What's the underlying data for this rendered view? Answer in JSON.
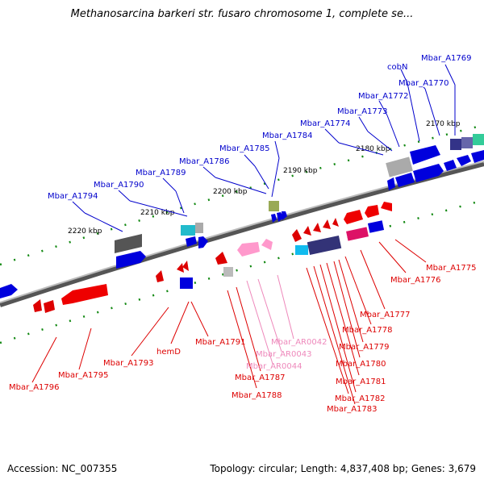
{
  "map": {
    "title": "Methanosarcina barkeri str. fusaro chromosome 1, complete se...",
    "accession": "Accession: NC_007355",
    "summary": "Topology: circular; Length: 4,837,408 bp; Genes: 3,679"
  },
  "scale_labels": [
    "2170 kbp",
    "2180 kbp",
    "2190 kbp",
    "2200 kbp",
    "2210 kbp",
    "2220 kbp"
  ],
  "genes_top": [
    "Mbar_A1769",
    "cobN",
    "Mbar_A1770",
    "Mbar_A1772",
    "Mbar_A1773",
    "Mbar_A1774",
    "Mbar_A1784",
    "Mbar_A1785",
    "Mbar_A1786",
    "Mbar_A1789",
    "Mbar_A1790",
    "Mbar_A1794"
  ],
  "genes_bottom": [
    "Mbar_A1775",
    "Mbar_A1776",
    "Mbar_A1777",
    "Mbar_A1778",
    "Mbar_A1779",
    "Mbar_A1780",
    "Mbar_A1781",
    "Mbar_A1782",
    "Mbar_A1783",
    "Mbar_A1788",
    "Mbar_A1787",
    "Mbar_A1791",
    "hemD",
    "Mbar_A1793",
    "Mbar_A1795",
    "Mbar_A1796"
  ],
  "rna_bottom": [
    "Mbar_AR0042",
    "Mbar_AR0043",
    "Mbar_AR0044"
  ],
  "colors": {
    "forward_label": "#0000cc",
    "reverse_label": "#dd0000",
    "rna_label": "#ee88bb",
    "backbone": "#888888",
    "tick": "#119911"
  }
}
